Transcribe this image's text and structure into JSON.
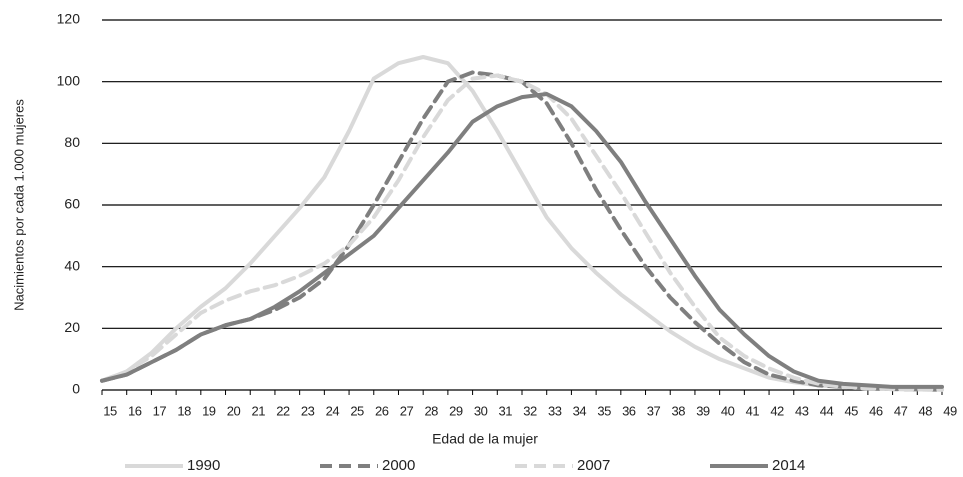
{
  "chart_data": {
    "type": "line",
    "xlabel": "Edad de la mujer",
    "ylabel": "Nacimientos por cada 1.000 mujeres",
    "x": [
      15,
      16,
      17,
      18,
      19,
      20,
      21,
      22,
      23,
      24,
      25,
      26,
      27,
      28,
      29,
      30,
      31,
      32,
      33,
      34,
      35,
      36,
      37,
      38,
      39,
      40,
      41,
      42,
      43,
      44,
      45,
      46,
      47,
      48,
      49
    ],
    "series": [
      {
        "name": "1990",
        "color": "#d9d9d9",
        "dashed": false,
        "values": [
          3,
          6,
          12,
          20,
          27,
          33,
          41,
          50,
          59,
          69,
          84,
          101,
          106,
          108,
          106,
          97,
          84,
          70,
          56,
          46,
          38,
          31,
          25,
          19,
          14,
          10,
          7,
          4,
          2.5,
          1.5,
          1,
          0.5,
          0.3,
          0.2,
          0.1
        ]
      },
      {
        "name": "2000",
        "color": "#7f7f7f",
        "dashed": true,
        "values": [
          3,
          5,
          9,
          13,
          18,
          21,
          23,
          26,
          30,
          36,
          47,
          60,
          74,
          88,
          100,
          103,
          102,
          100,
          93,
          80,
          65,
          52,
          40,
          30,
          22,
          15,
          9,
          5,
          3,
          1.5,
          1,
          0.5,
          0.3,
          0.2,
          0.1
        ]
      },
      {
        "name": "2007",
        "color": "#d9d9d9",
        "dashed": true,
        "values": [
          3,
          6,
          11,
          18,
          25,
          29,
          32,
          34,
          37,
          41,
          47,
          56,
          68,
          82,
          94,
          101,
          102,
          100,
          96,
          88,
          76,
          64,
          51,
          38,
          27,
          17,
          11,
          7,
          4,
          2,
          1,
          0.5,
          0.3,
          0.2,
          0.1
        ]
      },
      {
        "name": "2014",
        "color": "#7f7f7f",
        "dashed": false,
        "values": [
          3,
          5,
          9,
          13,
          18,
          21,
          23,
          27,
          32,
          38,
          44,
          50,
          59,
          68,
          77,
          87,
          92,
          95,
          96,
          92,
          84,
          74,
          61,
          49,
          37,
          26,
          18,
          11,
          6,
          3,
          2,
          1.5,
          1,
          1,
          1
        ]
      }
    ],
    "xlim": [
      15,
      49
    ],
    "xticks": [
      15,
      16,
      17,
      18,
      19,
      20,
      21,
      22,
      23,
      24,
      25,
      26,
      27,
      28,
      29,
      30,
      31,
      32,
      33,
      34,
      35,
      36,
      37,
      38,
      39,
      40,
      41,
      42,
      43,
      44,
      45,
      46,
      47,
      48,
      49
    ],
    "ylim": [
      0,
      120
    ],
    "yticks": [
      0,
      20,
      40,
      60,
      80,
      100,
      120
    ],
    "grid": true,
    "legend": "bottom"
  }
}
